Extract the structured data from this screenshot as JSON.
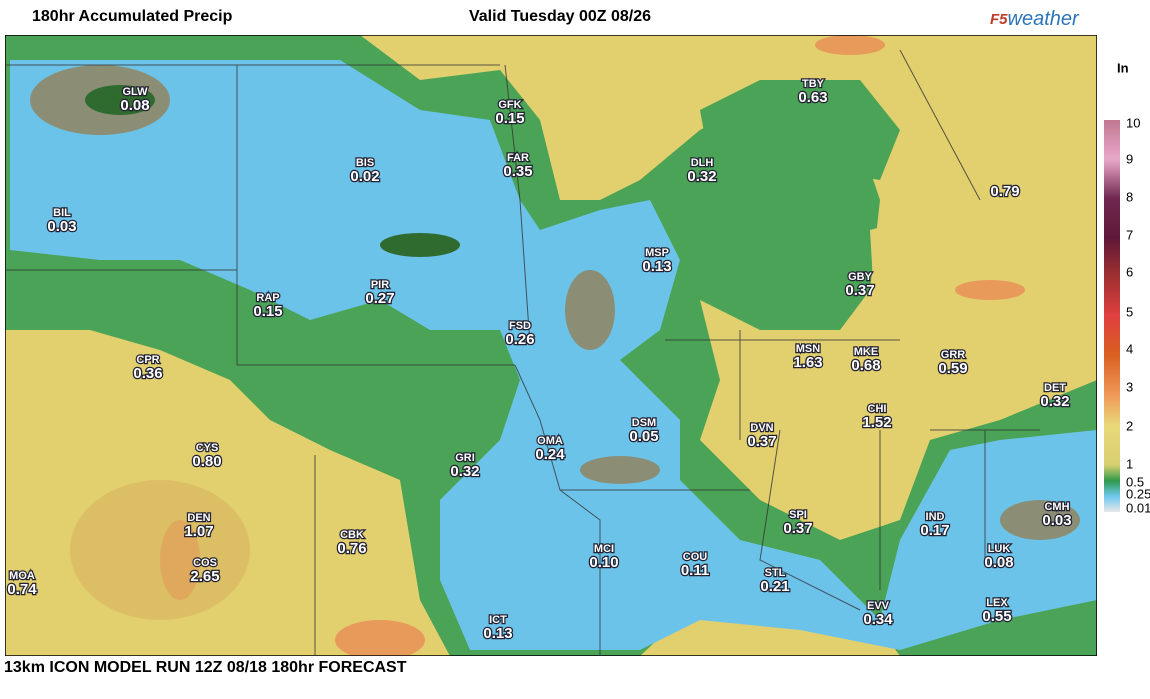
{
  "header": {
    "title": "180hr Accumulated Precip",
    "valid": "Valid Tuesday 00Z 08/26",
    "logo": {
      "prefix": "F5",
      "suffix": "weather"
    }
  },
  "footer": "13km ICON MODEL RUN 12Z 08/18 180hr FORECAST",
  "legend": {
    "unit": "In",
    "labels": [
      "10",
      "9",
      "8",
      "7",
      "6",
      "5",
      "4",
      "3",
      "2",
      "1",
      "0.5",
      "0.25",
      "0.01"
    ]
  },
  "stations": [
    {
      "code": "GLW",
      "value": "0.08"
    },
    {
      "code": "BIL",
      "value": "0.03"
    },
    {
      "code": "BIS",
      "value": "0.02"
    },
    {
      "code": "GFK",
      "value": "0.15"
    },
    {
      "code": "FAR",
      "value": "0.35"
    },
    {
      "code": "TBY",
      "value": "0.63"
    },
    {
      "code": "DLH",
      "value": "0.32"
    },
    {
      "code": "MSP",
      "value": "0.13"
    },
    {
      "code": "GBY",
      "value": "0.37"
    },
    {
      "code": "RAP",
      "value": "0.15"
    },
    {
      "code": "PIR",
      "value": "0.27"
    },
    {
      "code": "FSD",
      "value": "0.26"
    },
    {
      "code": "CPR",
      "value": "0.36"
    },
    {
      "code": "MSN",
      "value": "1.63"
    },
    {
      "code": "MKE",
      "value": "0.68"
    },
    {
      "code": "GRR",
      "value": "0.59"
    },
    {
      "code": "DET",
      "value": "0.32"
    },
    {
      "code": "CHI",
      "value": "1.52"
    },
    {
      "code": "DSM",
      "value": "0.05"
    },
    {
      "code": "DVN",
      "value": "0.37"
    },
    {
      "code": "OMA",
      "value": "0.24"
    },
    {
      "code": "GRI",
      "value": "0.32"
    },
    {
      "code": "CYS",
      "value": "0.80"
    },
    {
      "code": "DEN",
      "value": "1.07"
    },
    {
      "code": "COS",
      "value": "2.65"
    },
    {
      "code": "CBK",
      "value": "0.76"
    },
    {
      "code": "MCI",
      "value": "0.10"
    },
    {
      "code": "COU",
      "value": "0.11"
    },
    {
      "code": "STL",
      "value": "0.21"
    },
    {
      "code": "SPI",
      "value": "0.37"
    },
    {
      "code": "IND",
      "value": "0.17"
    },
    {
      "code": "CMH",
      "value": "0.03"
    },
    {
      "code": "LUK",
      "value": "0.08"
    },
    {
      "code": "LEX",
      "value": "0.55"
    },
    {
      "code": "EVV",
      "value": "0.34"
    },
    {
      "code": "ICT",
      "value": "0.13"
    },
    {
      "code": "MOA",
      "value": "0.74"
    },
    {
      "code": null,
      "value": "0.79"
    }
  ]
}
